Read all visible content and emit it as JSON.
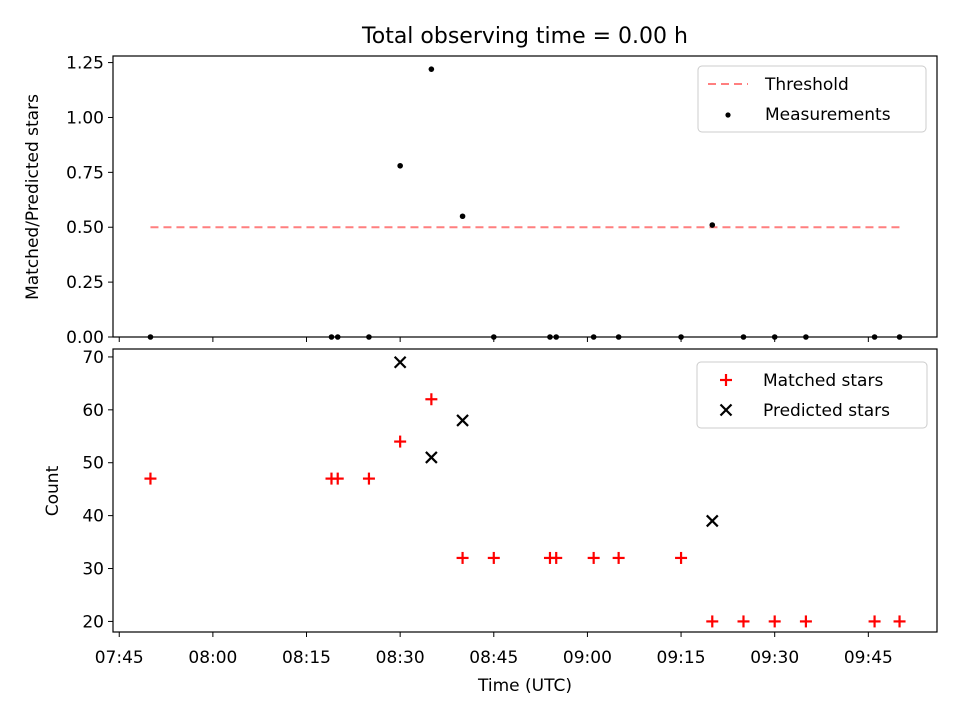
{
  "title": "Total observing time = 0.00 h",
  "colors": {
    "threshold": "#ff7f7f",
    "measurement": "#000000",
    "matched": "#ff0000",
    "predicted": "#000000"
  },
  "chart_data": [
    {
      "type": "scatter",
      "panel": "top",
      "ylabel": "Matched/Predicted stars",
      "ylim": [
        0,
        1.28
      ],
      "yticks": [
        0,
        0.25,
        0.5,
        0.75,
        1.0,
        1.25
      ],
      "ytick_labels": [
        "0.00",
        "0.25",
        "0.50",
        "0.75",
        "1.00",
        "1.25"
      ],
      "legend_position": "top-right",
      "threshold": {
        "name": "Threshold",
        "value": 0.5,
        "x_start": "07:50",
        "x_end": "09:50"
      },
      "series": [
        {
          "name": "Measurements",
          "marker": "dot",
          "points": [
            [
              "07:50",
              0.0
            ],
            [
              "08:19",
              0.0
            ],
            [
              "08:20",
              0.0
            ],
            [
              "08:25",
              0.0
            ],
            [
              "08:30",
              0.78
            ],
            [
              "08:35",
              1.22
            ],
            [
              "08:40",
              0.55
            ],
            [
              "08:45",
              0.0
            ],
            [
              "08:54",
              0.0
            ],
            [
              "08:55",
              0.0
            ],
            [
              "09:01",
              0.0
            ],
            [
              "09:05",
              0.0
            ],
            [
              "09:15",
              0.0
            ],
            [
              "09:20",
              0.51
            ],
            [
              "09:25",
              0.0
            ],
            [
              "09:30",
              0.0
            ],
            [
              "09:35",
              0.0
            ],
            [
              "09:46",
              0.0
            ],
            [
              "09:50",
              0.0
            ]
          ]
        }
      ]
    },
    {
      "type": "scatter",
      "panel": "bottom",
      "xlabel": "Time (UTC)",
      "ylabel": "Count",
      "ylim": [
        18,
        71.5
      ],
      "yticks": [
        20,
        30,
        40,
        50,
        60,
        70
      ],
      "xticks": [
        "07:45",
        "08:00",
        "08:15",
        "08:30",
        "08:45",
        "09:00",
        "09:15",
        "09:30",
        "09:45"
      ],
      "legend_position": "top-right",
      "series": [
        {
          "name": "Matched stars",
          "marker": "plus",
          "points": [
            [
              "07:50",
              47
            ],
            [
              "08:19",
              47
            ],
            [
              "08:20",
              47
            ],
            [
              "08:25",
              47
            ],
            [
              "08:30",
              54
            ],
            [
              "08:35",
              62
            ],
            [
              "08:40",
              32
            ],
            [
              "08:45",
              32
            ],
            [
              "08:54",
              32
            ],
            [
              "08:55",
              32
            ],
            [
              "09:01",
              32
            ],
            [
              "09:05",
              32
            ],
            [
              "09:15",
              32
            ],
            [
              "09:20",
              20
            ],
            [
              "09:25",
              20
            ],
            [
              "09:30",
              20
            ],
            [
              "09:35",
              20
            ],
            [
              "09:46",
              20
            ],
            [
              "09:50",
              20
            ]
          ]
        },
        {
          "name": "Predicted stars",
          "marker": "x",
          "points": [
            [
              "08:30",
              69
            ],
            [
              "08:35",
              51
            ],
            [
              "08:40",
              58
            ],
            [
              "09:20",
              39
            ]
          ]
        }
      ]
    }
  ],
  "xaxis": {
    "min": "07:44",
    "max": "09:56"
  }
}
